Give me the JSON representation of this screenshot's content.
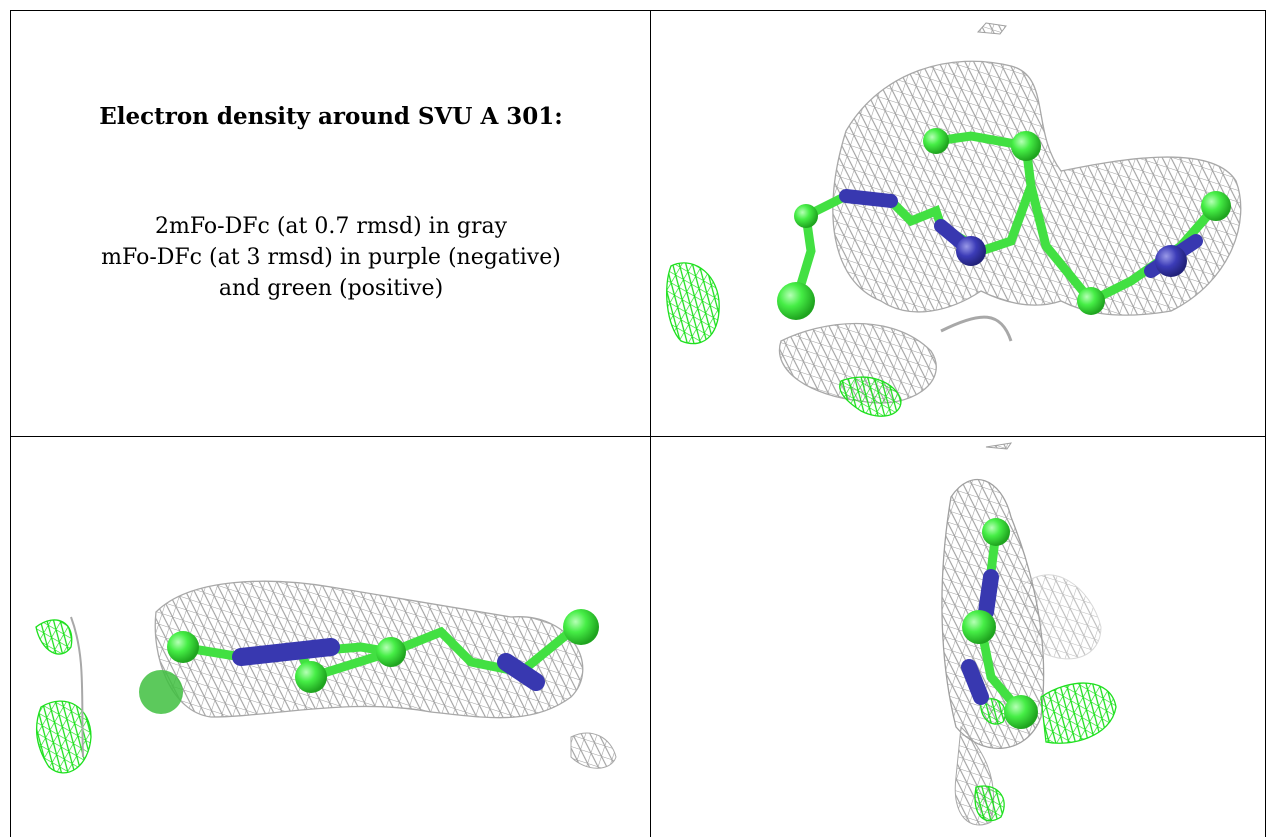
{
  "caption": {
    "title": "Electron density around SVU A 301:",
    "line1": "2mFo-DFc (at 0.7 rmsd) in gray",
    "line2": "mFo-DFc (at 3 rmsd) in purple (negative)",
    "line3": "and green (positive)"
  },
  "colors": {
    "mesh_gray": "#a9a9a9",
    "positive_green": "#22e822",
    "atom_green": "#44ee44",
    "atom_blue": "#3a3ab4",
    "border": "#000000"
  },
  "panels": [
    {
      "view": "top-right",
      "depicts": "density-mesh-molecule"
    },
    {
      "view": "bottom-left",
      "depicts": "density-mesh-molecule"
    },
    {
      "view": "bottom-right",
      "depicts": "density-mesh-molecule"
    }
  ]
}
